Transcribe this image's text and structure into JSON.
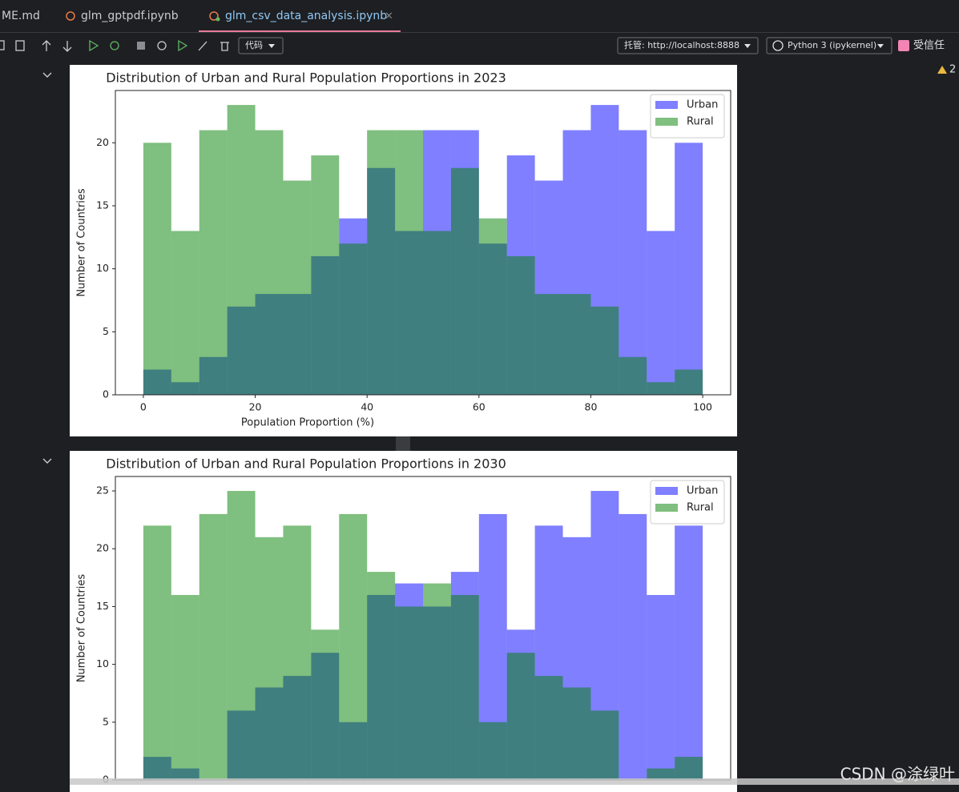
{
  "tabs": [
    "ME.md",
    "glm_gptpdf.ipynb",
    "glm_csv_data_analysis.ipynb"
  ],
  "toolbar": {
    "cell_type": "代码",
    "server": "托管: http://localhost:8888",
    "kernel": "Python 3 (ipykernel)",
    "trust": "受信任",
    "warnings": 2
  },
  "watermark": "CSDN @涂绿叶",
  "chart_data": [
    {
      "type": "histogram",
      "title": "Distribution of Urban and Rural Population Proportions in 2023",
      "xlabel": "Population Proportion (%)",
      "ylabel": "Number of Countries",
      "bins": [
        0,
        5,
        10,
        15,
        20,
        25,
        30,
        35,
        40,
        45,
        50,
        55,
        60,
        65,
        70,
        75,
        80,
        85,
        90,
        95,
        100
      ],
      "series": [
        {
          "name": "Urban",
          "color": "#0000ff",
          "values": [
            2,
            1,
            3,
            7,
            8,
            8,
            11,
            14,
            18,
            13,
            21,
            21,
            12,
            19,
            17,
            21,
            23,
            21,
            13,
            20
          ]
        },
        {
          "name": "Rural",
          "color": "#008000",
          "values": [
            20,
            13,
            21,
            23,
            21,
            17,
            19,
            12,
            21,
            21,
            13,
            18,
            14,
            11,
            8,
            8,
            7,
            3,
            1,
            2
          ]
        }
      ],
      "alpha": 0.5,
      "legend": "upper right",
      "xlim": [
        -5,
        105
      ],
      "xticks": [
        0,
        20,
        40,
        60,
        80,
        100
      ],
      "ylim": [
        0,
        24.15
      ],
      "yticks": [
        0,
        5,
        10,
        15,
        20
      ]
    },
    {
      "type": "histogram",
      "title": "Distribution of Urban and Rural Population Proportions in 2030",
      "ylabel": "Number of Countries",
      "bins": [
        0,
        5,
        10,
        15,
        20,
        25,
        30,
        35,
        40,
        45,
        50,
        55,
        60,
        65,
        70,
        75,
        80,
        85,
        90,
        95,
        100
      ],
      "series": [
        {
          "name": "Urban",
          "color": "#0000ff",
          "values": [
            2,
            1,
            0,
            6,
            8,
            9,
            11,
            5,
            16,
            17,
            15,
            18,
            23,
            13,
            22,
            21,
            25,
            23,
            16,
            22
          ]
        },
        {
          "name": "Rural",
          "color": "#008000",
          "values": [
            22,
            16,
            23,
            25,
            21,
            22,
            13,
            23,
            18,
            15,
            17,
            16,
            5,
            11,
            9,
            8,
            6,
            0,
            1,
            2
          ]
        }
      ],
      "alpha": 0.5,
      "legend": "upper right",
      "xlim": [
        -5,
        105
      ],
      "ylim": [
        0,
        26.25
      ],
      "yticks": [
        0,
        5,
        10,
        15,
        20,
        25
      ]
    }
  ]
}
